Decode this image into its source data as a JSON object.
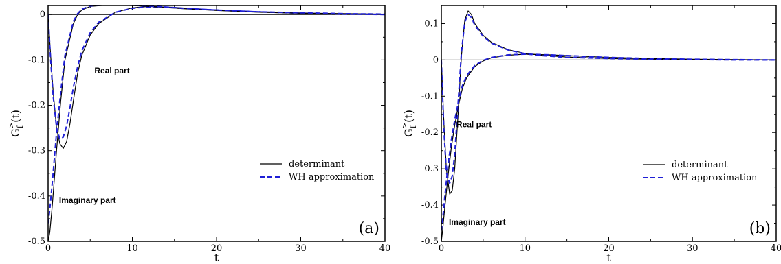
{
  "chart_data": [
    {
      "type": "line",
      "panel_label": "(a)",
      "xlabel": "t",
      "ylabel": {
        "main": "G",
        "sub": "f",
        "sup": ">",
        "tail": "(t)"
      },
      "xlim": [
        0,
        40
      ],
      "ylim": [
        -0.5,
        0.02
      ],
      "xticks": [
        0,
        10,
        20,
        30,
        40
      ],
      "yticks": [
        0,
        -0.1,
        -0.2,
        -0.3,
        -0.4,
        -0.5
      ],
      "ytick_labels": [
        "0",
        "-0.1",
        "-0.2",
        "-0.3",
        "-0.4",
        "-0.5"
      ],
      "grid": false,
      "legend_position": "lower-right",
      "zero_line": true,
      "annotations": [
        {
          "text": "Real part",
          "x": 5.5,
          "y": -0.13
        },
        {
          "text": "Imaginary part",
          "x": 1.3,
          "y": -0.415
        }
      ],
      "series": [
        {
          "name": "determinant",
          "color": "#000000",
          "dash": "solid",
          "part": "real",
          "x": [
            0,
            0.3,
            0.6,
            1.0,
            1.4,
            1.8,
            2.2,
            2.6,
            3.0,
            3.5,
            4.0,
            5.0,
            6.0,
            8.0,
            10.0,
            12.0,
            15.0,
            20.0,
            25.0,
            30.0,
            35.0,
            40.0
          ],
          "y": [
            0,
            -0.09,
            -0.17,
            -0.25,
            -0.285,
            -0.295,
            -0.28,
            -0.24,
            -0.19,
            -0.13,
            -0.09,
            -0.045,
            -0.02,
            0.005,
            0.015,
            0.018,
            0.016,
            0.01,
            0.006,
            0.003,
            0.001,
            0.0
          ]
        },
        {
          "name": "WH approximation",
          "color": "#1f1fd6",
          "dash": "dashed",
          "part": "real",
          "x": [
            0,
            0.3,
            0.6,
            1.0,
            1.4,
            1.8,
            2.2,
            2.6,
            3.0,
            3.5,
            4.0,
            5.0,
            6.0,
            8.0,
            10.0,
            12.0,
            15.0,
            20.0,
            25.0,
            30.0,
            35.0,
            40.0
          ],
          "y": [
            0,
            -0.1,
            -0.18,
            -0.25,
            -0.275,
            -0.27,
            -0.245,
            -0.205,
            -0.16,
            -0.115,
            -0.08,
            -0.04,
            -0.017,
            0.005,
            0.014,
            0.017,
            0.015,
            0.01,
            0.006,
            0.003,
            0.001,
            0.0
          ]
        },
        {
          "name": "determinant",
          "color": "#000000",
          "dash": "solid",
          "part": "imaginary",
          "x": [
            0,
            0.2,
            0.5,
            1.0,
            1.5,
            2.0,
            3.0,
            3.5,
            4.0,
            5.0,
            7.0,
            10.0,
            13.0,
            16.0,
            20.0,
            25.0,
            30.0,
            35.0,
            40.0
          ],
          "y": [
            -0.5,
            -0.48,
            -0.42,
            -0.3,
            -0.19,
            -0.1,
            -0.02,
            0.0,
            0.01,
            0.018,
            0.021,
            0.02,
            0.017,
            0.013,
            0.009,
            0.005,
            0.003,
            0.002,
            0.001
          ]
        },
        {
          "name": "WH approximation",
          "color": "#1f1fd6",
          "dash": "dashed",
          "part": "imaginary",
          "x": [
            0,
            0.2,
            0.5,
            1.0,
            1.5,
            2.0,
            3.0,
            3.5,
            4.0,
            5.0,
            7.0,
            10.0,
            13.0,
            16.0,
            20.0,
            25.0,
            30.0,
            35.0,
            40.0
          ],
          "y": [
            -0.46,
            -0.43,
            -0.37,
            -0.26,
            -0.17,
            -0.09,
            -0.015,
            0.002,
            0.012,
            0.019,
            0.022,
            0.021,
            0.018,
            0.014,
            0.01,
            0.006,
            0.004,
            0.002,
            0.001
          ]
        }
      ]
    },
    {
      "type": "line",
      "panel_label": "(b)",
      "xlabel": "t",
      "ylabel": {
        "main": "G",
        "sub": "f",
        "sup": ">",
        "tail": "(t)"
      },
      "xlim": [
        0,
        40
      ],
      "ylim": [
        -0.5,
        0.15
      ],
      "xticks": [
        0,
        10,
        20,
        30,
        40
      ],
      "yticks": [
        0.1,
        0,
        -0.1,
        -0.2,
        -0.3,
        -0.4,
        -0.5
      ],
      "ytick_labels": [
        "0.1",
        "0",
        "-0.1",
        "-0.2",
        "-0.3",
        "-0.4",
        "-0.5"
      ],
      "grid": false,
      "legend_position": "lower-right",
      "zero_line": true,
      "annotations": [
        {
          "text": "Real part",
          "x": 1.8,
          "y": -0.185
        },
        {
          "text": "Imaginary part",
          "x": 0.9,
          "y": -0.455
        }
      ],
      "series": [
        {
          "name": "determinant",
          "color": "#000000",
          "dash": "solid",
          "part": "real",
          "x": [
            0,
            0.3,
            0.6,
            1.0,
            1.3,
            1.6,
            2.0,
            2.4,
            2.8,
            3.2,
            3.6,
            4.0,
            5.0,
            6.0,
            8.0,
            10.0,
            12.0,
            15.0,
            20.0,
            25.0,
            30.0,
            35.0,
            40.0
          ],
          "y": [
            0,
            -0.17,
            -0.3,
            -0.37,
            -0.36,
            -0.3,
            -0.15,
            0.01,
            0.11,
            0.135,
            0.125,
            0.1,
            0.068,
            0.048,
            0.028,
            0.018,
            0.013,
            0.008,
            0.004,
            0.002,
            0.001,
            0.0,
            0.0
          ]
        },
        {
          "name": "WH approximation",
          "color": "#1f1fd6",
          "dash": "dashed",
          "part": "real",
          "x": [
            0,
            0.3,
            0.6,
            1.0,
            1.3,
            1.6,
            2.0,
            2.4,
            2.8,
            3.2,
            3.6,
            4.0,
            5.0,
            6.0,
            8.0,
            10.0,
            12.0,
            15.0,
            20.0,
            25.0,
            30.0,
            35.0,
            40.0
          ],
          "y": [
            0,
            -0.19,
            -0.31,
            -0.34,
            -0.32,
            -0.26,
            -0.12,
            0.02,
            0.105,
            0.125,
            0.117,
            0.095,
            0.065,
            0.046,
            0.027,
            0.017,
            0.012,
            0.007,
            0.004,
            0.002,
            0.001,
            0.0,
            0.0
          ]
        },
        {
          "name": "determinant",
          "color": "#000000",
          "dash": "solid",
          "part": "imaginary",
          "x": [
            0,
            0.15,
            0.4,
            0.8,
            1.2,
            1.6,
            2.0,
            2.5,
            3.0,
            4.0,
            5.0,
            6.0,
            8.0,
            10.0,
            13.0,
            16.0,
            20.0,
            25.0,
            30.0,
            35.0,
            40.0
          ],
          "y": [
            -0.5,
            -0.47,
            -0.41,
            -0.32,
            -0.24,
            -0.18,
            -0.13,
            -0.08,
            -0.05,
            -0.018,
            -0.003,
            0.006,
            0.013,
            0.016,
            0.014,
            0.011,
            0.007,
            0.004,
            0.002,
            0.001,
            0.0
          ]
        },
        {
          "name": "WH approximation",
          "color": "#1f1fd6",
          "dash": "dashed",
          "part": "imaginary",
          "x": [
            0,
            0.15,
            0.4,
            0.8,
            1.2,
            1.6,
            2.0,
            2.5,
            3.0,
            4.0,
            5.0,
            6.0,
            8.0,
            10.0,
            13.0,
            16.0,
            20.0,
            25.0,
            30.0,
            35.0,
            40.0
          ],
          "y": [
            -0.47,
            -0.44,
            -0.38,
            -0.29,
            -0.22,
            -0.165,
            -0.12,
            -0.072,
            -0.044,
            -0.015,
            -0.001,
            0.007,
            0.014,
            0.016,
            0.014,
            0.011,
            0.007,
            0.004,
            0.002,
            0.001,
            0.0
          ]
        }
      ]
    }
  ],
  "legend": {
    "entries": [
      {
        "label": "determinant",
        "color": "#000000",
        "dash": "solid"
      },
      {
        "label": "WH approximation",
        "color": "#1f1fd6",
        "dash": "dashed"
      }
    ]
  }
}
